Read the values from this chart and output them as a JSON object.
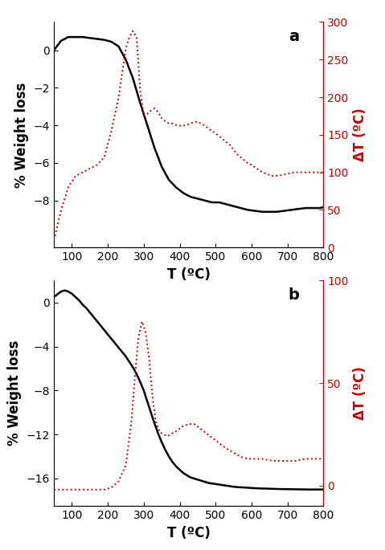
{
  "panel_a": {
    "label": "a",
    "black_x": [
      50,
      70,
      90,
      110,
      130,
      150,
      170,
      190,
      210,
      230,
      250,
      270,
      290,
      310,
      330,
      350,
      370,
      390,
      410,
      430,
      450,
      470,
      490,
      510,
      530,
      550,
      570,
      590,
      610,
      630,
      650,
      670,
      690,
      710,
      730,
      750,
      770,
      790,
      800
    ],
    "black_y": [
      0.0,
      0.5,
      0.7,
      0.7,
      0.7,
      0.65,
      0.6,
      0.55,
      0.45,
      0.2,
      -0.5,
      -1.5,
      -2.8,
      -4.0,
      -5.2,
      -6.2,
      -6.9,
      -7.3,
      -7.6,
      -7.8,
      -7.9,
      -8.0,
      -8.1,
      -8.1,
      -8.2,
      -8.3,
      -8.4,
      -8.5,
      -8.55,
      -8.6,
      -8.6,
      -8.6,
      -8.55,
      -8.5,
      -8.45,
      -8.4,
      -8.4,
      -8.4,
      -8.35
    ],
    "red_x": [
      50,
      70,
      90,
      110,
      130,
      150,
      170,
      190,
      210,
      230,
      250,
      260,
      270,
      280,
      290,
      300,
      310,
      320,
      330,
      340,
      350,
      360,
      370,
      380,
      390,
      400,
      410,
      420,
      430,
      440,
      450,
      460,
      470,
      480,
      490,
      500,
      510,
      520,
      530,
      540,
      550,
      560,
      570,
      580,
      590,
      600,
      620,
      640,
      660,
      680,
      700,
      720,
      740,
      760,
      780,
      800
    ],
    "red_y": [
      10,
      50,
      80,
      95,
      100,
      105,
      110,
      120,
      155,
      200,
      265,
      280,
      288,
      280,
      210,
      175,
      178,
      182,
      185,
      180,
      172,
      168,
      165,
      165,
      163,
      162,
      162,
      163,
      165,
      167,
      167,
      165,
      162,
      158,
      155,
      152,
      148,
      144,
      140,
      136,
      130,
      124,
      120,
      116,
      112,
      110,
      103,
      98,
      95,
      96,
      98,
      100,
      100,
      100,
      100,
      100
    ],
    "left_ylim": [
      -10.5,
      1.5
    ],
    "left_yticks": [
      0,
      -2,
      -4,
      -6,
      -8
    ],
    "right_ylim": [
      0,
      300
    ],
    "right_yticks": [
      0,
      50,
      100,
      150,
      200,
      250,
      300
    ],
    "xlim": [
      50,
      800
    ],
    "xticks": [
      100,
      200,
      300,
      400,
      500,
      600,
      700,
      800
    ],
    "xlabel": "T (ºC)",
    "ylabel_left": "% Weight loss",
    "ylabel_right": "ΔT (ºC)"
  },
  "panel_b": {
    "label": "b",
    "black_x": [
      50,
      70,
      80,
      90,
      100,
      110,
      120,
      130,
      140,
      150,
      160,
      170,
      180,
      190,
      200,
      210,
      220,
      230,
      240,
      250,
      260,
      270,
      280,
      290,
      300,
      310,
      320,
      330,
      340,
      350,
      360,
      370,
      380,
      390,
      400,
      410,
      420,
      430,
      440,
      450,
      460,
      470,
      480,
      490,
      500,
      510,
      520,
      530,
      540,
      550,
      560,
      570,
      580,
      590,
      600,
      620,
      640,
      660,
      680,
      700,
      720,
      740,
      760,
      780,
      800
    ],
    "black_y": [
      0.5,
      1.0,
      1.1,
      1.0,
      0.8,
      0.5,
      0.2,
      -0.2,
      -0.5,
      -0.9,
      -1.3,
      -1.7,
      -2.1,
      -2.5,
      -2.9,
      -3.3,
      -3.7,
      -4.1,
      -4.5,
      -4.9,
      -5.4,
      -5.9,
      -6.5,
      -7.2,
      -8.0,
      -9.0,
      -10.0,
      -11.0,
      -11.9,
      -12.7,
      -13.4,
      -14.0,
      -14.5,
      -14.9,
      -15.2,
      -15.5,
      -15.7,
      -15.9,
      -16.0,
      -16.1,
      -16.2,
      -16.3,
      -16.4,
      -16.45,
      -16.5,
      -16.55,
      -16.6,
      -16.65,
      -16.7,
      -16.75,
      -16.78,
      -16.8,
      -16.82,
      -16.84,
      -16.86,
      -16.9,
      -16.92,
      -16.94,
      -16.96,
      -16.97,
      -16.98,
      -16.99,
      -17.0,
      -17.0,
      -17.0
    ],
    "red_x": [
      50,
      70,
      100,
      130,
      160,
      190,
      210,
      230,
      250,
      265,
      275,
      285,
      295,
      305,
      315,
      325,
      335,
      345,
      355,
      365,
      375,
      385,
      395,
      410,
      425,
      440,
      455,
      470,
      485,
      500,
      515,
      530,
      550,
      570,
      590,
      610,
      630,
      660,
      690,
      720,
      750,
      780,
      800
    ],
    "red_y": [
      -2,
      -2,
      -2,
      -2,
      -2,
      -2,
      -1,
      2,
      10,
      30,
      52,
      72,
      80,
      75,
      62,
      42,
      30,
      26,
      25,
      24,
      25,
      26,
      27,
      29,
      30,
      30,
      28,
      26,
      24,
      22,
      20,
      18,
      16,
      14,
      13,
      13,
      13,
      12,
      12,
      12,
      13,
      13,
      13
    ],
    "left_ylim": [
      -18.5,
      2.0
    ],
    "left_yticks": [
      0,
      -4,
      -8,
      -12,
      -16
    ],
    "right_ylim": [
      -10,
      100
    ],
    "right_yticks": [
      0,
      50,
      100
    ],
    "xlim": [
      50,
      800
    ],
    "xticks": [
      100,
      200,
      300,
      400,
      500,
      600,
      700,
      800
    ],
    "xlabel": "T (ºC)",
    "ylabel_left": "% Weight loss",
    "ylabel_right": "ΔT (ºC)"
  },
  "figure": {
    "bg_color": "#ffffff",
    "black_line_color": "#000000",
    "red_line_color": "#cc0000",
    "black_lw": 1.8,
    "red_lw": 1.4,
    "label_fontsize": 12,
    "tick_fontsize": 10,
    "panel_label_fontsize": 14
  }
}
